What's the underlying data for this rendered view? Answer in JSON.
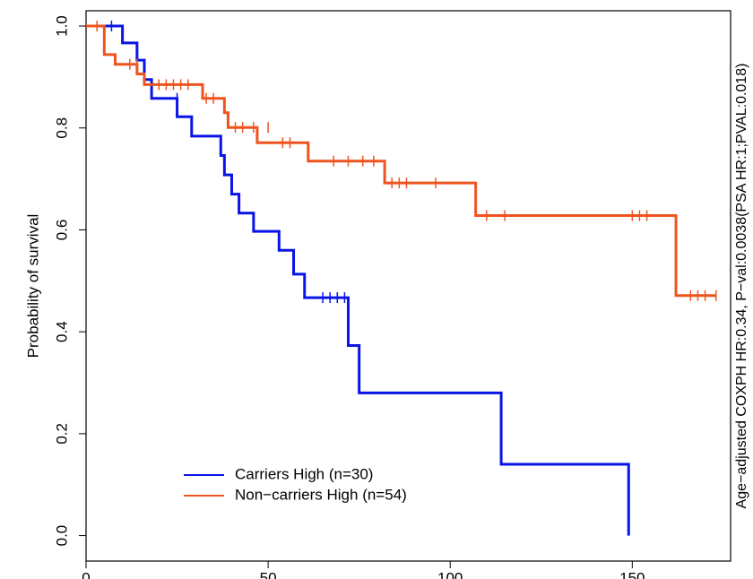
{
  "chart_data": {
    "type": "survival",
    "y_label": "Probability of survival",
    "side_note": "Age−adjusted COXPH HR:0.34, P−val:0.0038(PSA HR:1;PVAL:0.018)",
    "xlim": [
      0,
      177
    ],
    "ylim": [
      -0.05,
      1.03
    ],
    "xticks": [
      0,
      50,
      100,
      150
    ],
    "yticks": [
      {
        "value": 0,
        "label": "0.0"
      },
      0.2,
      0.4,
      0.6,
      0.8,
      {
        "value": 1,
        "label": "1.0"
      }
    ],
    "legend": "bottom-left",
    "series": [
      {
        "name": "Carriers High (n=30)",
        "color": "#0a14e6",
        "x": [
          0,
          10,
          14,
          16,
          18,
          25,
          29,
          37,
          38,
          40,
          42,
          46,
          53,
          57,
          60,
          72,
          75,
          114,
          149
        ],
        "values": [
          1,
          0.967,
          0.933,
          0.895,
          0.858,
          0.822,
          0.784,
          0.746,
          0.708,
          0.67,
          0.633,
          0.597,
          0.56,
          0.513,
          0.467,
          0.373,
          0.28,
          0.14,
          0
        ],
        "censored_x": [
          7,
          25,
          65,
          67,
          69,
          71
        ],
        "censored_values": [
          1,
          0.858,
          0.467,
          0.467,
          0.467,
          0.467
        ]
      },
      {
        "name": "Non−carriers High (n=54)",
        "color": "#f0541e",
        "x": [
          0,
          5,
          8,
          14,
          16,
          32,
          38,
          39,
          47,
          61,
          82,
          107,
          162
        ],
        "values": [
          1,
          0.944,
          0.925,
          0.906,
          0.885,
          0.858,
          0.83,
          0.801,
          0.771,
          0.735,
          0.692,
          0.628,
          0.471
        ],
        "censored_x": [
          3,
          12,
          14,
          20,
          22,
          24,
          26,
          28,
          33,
          35,
          41,
          43,
          46,
          50,
          54,
          56,
          68,
          72,
          76,
          79,
          84,
          86,
          88,
          96,
          110,
          115,
          150,
          152,
          154,
          166,
          168,
          170,
          173
        ],
        "censored_values": [
          1,
          0.925,
          0.925,
          0.885,
          0.885,
          0.885,
          0.885,
          0.885,
          0.858,
          0.858,
          0.801,
          0.801,
          0.801,
          0.801,
          0.771,
          0.771,
          0.735,
          0.735,
          0.735,
          0.735,
          0.692,
          0.692,
          0.692,
          0.692,
          0.628,
          0.628,
          0.628,
          0.628,
          0.628,
          0.471,
          0.471,
          0.471,
          0.471
        ]
      }
    ]
  }
}
